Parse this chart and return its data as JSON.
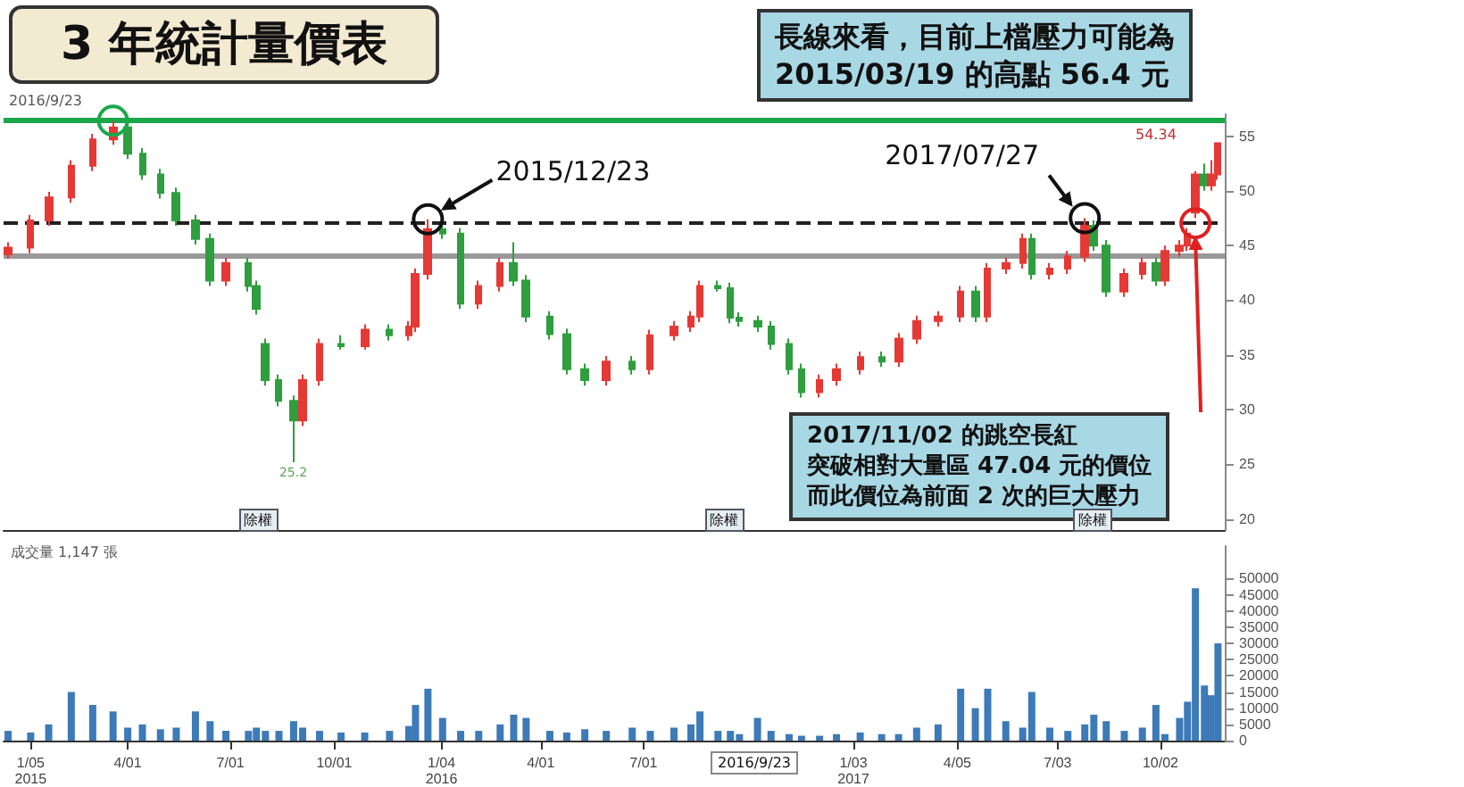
{
  "chart_data": [
    {
      "type": "candlestick",
      "title": "3 年統計量價表",
      "x": [
        "2014-12-16",
        "2015-01-05",
        "2015-01-21",
        "2015-02-10",
        "2015-03-01",
        "2015-03-19",
        "2015-04-01",
        "2015-04-14",
        "2015-04-30",
        "2015-05-14",
        "2015-05-31",
        "2015-06-13",
        "2015-06-27",
        "2015-07-17",
        "2015-07-24",
        "2015-08-01",
        "2015-08-13",
        "2015-08-26",
        "2015-09-03",
        "2015-09-18",
        "2015-10-07",
        "2015-10-28",
        "2015-11-19",
        "2015-12-06",
        "2015-12-12",
        "2015-12-23",
        "2016-01-05",
        "2016-01-21",
        "2016-02-06",
        "2016-02-25",
        "2016-03-08",
        "2016-03-19",
        "2016-04-09",
        "2016-04-24",
        "2016-05-10",
        "2016-05-29",
        "2016-06-21",
        "2016-07-07",
        "2016-07-28",
        "2016-08-12",
        "2016-08-20",
        "2016-09-05",
        "2016-09-16",
        "2016-09-24",
        "2016-10-10",
        "2016-10-22",
        "2016-11-07",
        "2016-11-18",
        "2016-12-04",
        "2016-12-19",
        "2017-01-09",
        "2017-01-28",
        "2017-02-12",
        "2017-02-28",
        "2017-03-19",
        "2017-04-08",
        "2017-04-21",
        "2017-05-02",
        "2017-05-18",
        "2017-06-02",
        "2017-06-10",
        "2017-06-26",
        "2017-07-12",
        "2017-07-27",
        "2017-08-04",
        "2017-08-15",
        "2017-08-31",
        "2017-09-16",
        "2017-09-28",
        "2017-10-06",
        "2017-10-19",
        "2017-10-26",
        "2017-11-02",
        "2017-11-10",
        "2017-11-16",
        "2017-11-22"
      ],
      "ohlc": [
        [
          44.2,
          45.3,
          43.8,
          44.8
        ],
        [
          44.8,
          47.8,
          44.3,
          47.3
        ],
        [
          47.3,
          49.9,
          46.8,
          49.4
        ],
        [
          49.4,
          52.8,
          48.9,
          52.3
        ],
        [
          52.3,
          55.2,
          51.8,
          54.7
        ],
        [
          54.7,
          56.4,
          54.2,
          55.8
        ],
        [
          55.8,
          56.1,
          52.9,
          53.4
        ],
        [
          53.4,
          53.9,
          51.0,
          51.5
        ],
        [
          51.5,
          52.0,
          49.3,
          49.8
        ],
        [
          49.8,
          50.3,
          46.8,
          47.3
        ],
        [
          47.3,
          47.8,
          45.1,
          45.6
        ],
        [
          45.6,
          46.1,
          41.3,
          41.8
        ],
        [
          41.8,
          43.9,
          41.3,
          43.4
        ],
        [
          43.4,
          43.9,
          40.8,
          41.3
        ],
        [
          41.3,
          41.8,
          38.7,
          39.2
        ],
        [
          36.0,
          36.5,
          32.2,
          32.7
        ],
        [
          32.7,
          33.2,
          30.3,
          30.8
        ],
        [
          30.8,
          31.3,
          25.2,
          29.0
        ],
        [
          29.0,
          33.2,
          28.5,
          32.7
        ],
        [
          32.7,
          36.5,
          32.2,
          36.0
        ],
        [
          36.0,
          36.8,
          35.5,
          35.8
        ],
        [
          35.8,
          37.8,
          35.5,
          37.3
        ],
        [
          37.3,
          37.8,
          36.3,
          36.8
        ],
        [
          36.8,
          38.1,
          36.3,
          37.6
        ],
        [
          37.6,
          42.9,
          37.1,
          42.4
        ],
        [
          42.4,
          47.4,
          41.9,
          46.5
        ],
        [
          46.5,
          47.0,
          45.6,
          46.1
        ],
        [
          46.1,
          46.6,
          39.2,
          39.7
        ],
        [
          39.7,
          41.8,
          39.2,
          41.3
        ],
        [
          41.3,
          43.9,
          40.8,
          43.4
        ],
        [
          43.4,
          45.3,
          41.3,
          41.8
        ],
        [
          41.8,
          42.3,
          38.0,
          38.5
        ],
        [
          38.5,
          39.0,
          36.4,
          36.9
        ],
        [
          36.9,
          37.4,
          33.2,
          33.7
        ],
        [
          33.7,
          34.2,
          32.2,
          32.7
        ],
        [
          32.7,
          34.9,
          32.2,
          34.4
        ],
        [
          34.4,
          34.9,
          33.2,
          33.7
        ],
        [
          33.7,
          37.3,
          33.2,
          36.8
        ],
        [
          36.8,
          38.1,
          36.3,
          37.6
        ],
        [
          37.6,
          39.0,
          37.1,
          38.5
        ],
        [
          38.5,
          41.8,
          38.0,
          41.3
        ],
        [
          41.3,
          41.8,
          40.8,
          41.1
        ],
        [
          41.1,
          41.6,
          37.9,
          38.4
        ],
        [
          38.4,
          38.9,
          37.6,
          38.1
        ],
        [
          38.1,
          38.6,
          37.1,
          37.6
        ],
        [
          37.6,
          38.1,
          35.5,
          36.0
        ],
        [
          36.0,
          36.5,
          33.2,
          33.7
        ],
        [
          33.7,
          34.2,
          31.1,
          31.6
        ],
        [
          31.6,
          33.2,
          31.1,
          32.7
        ],
        [
          32.7,
          34.2,
          32.2,
          33.7
        ],
        [
          33.7,
          35.3,
          33.2,
          34.8
        ],
        [
          34.8,
          35.3,
          33.9,
          34.4
        ],
        [
          34.4,
          37.0,
          33.9,
          36.5
        ],
        [
          36.5,
          38.6,
          36.0,
          38.1
        ],
        [
          38.1,
          39.0,
          37.6,
          38.5
        ],
        [
          38.5,
          41.3,
          38.0,
          40.8
        ],
        [
          40.8,
          41.3,
          38.0,
          38.5
        ],
        [
          38.5,
          43.4,
          38.0,
          42.9
        ],
        [
          42.9,
          43.9,
          42.4,
          43.4
        ],
        [
          43.4,
          46.1,
          42.9,
          45.6
        ],
        [
          45.6,
          46.1,
          41.9,
          42.4
        ],
        [
          42.4,
          43.4,
          41.9,
          42.9
        ],
        [
          42.9,
          44.5,
          42.4,
          44.0
        ],
        [
          44.0,
          47.5,
          43.5,
          46.8
        ],
        [
          46.8,
          47.3,
          44.5,
          45.0
        ],
        [
          45.0,
          45.5,
          40.3,
          40.8
        ],
        [
          40.8,
          42.9,
          40.3,
          42.4
        ],
        [
          42.4,
          43.9,
          41.9,
          43.4
        ],
        [
          43.4,
          43.9,
          41.3,
          41.8
        ],
        [
          41.8,
          45.0,
          41.3,
          44.5
        ],
        [
          44.5,
          45.5,
          44.0,
          45.0
        ],
        [
          45.0,
          46.6,
          44.5,
          46.1
        ],
        [
          48.0,
          51.8,
          47.5,
          51.5
        ],
        [
          51.5,
          52.5,
          50.0,
          50.5
        ],
        [
          50.5,
          52.8,
          50.0,
          51.5
        ],
        [
          51.5,
          54.34,
          51.0,
          54.34
        ]
      ],
      "xlim": [
        "2014-12-12",
        "2017-11-28"
      ],
      "ylim": [
        19,
        57
      ],
      "yticks": [
        20,
        25,
        30,
        35,
        40,
        45,
        50,
        55
      ],
      "tick_labels": "y",
      "ref_lines": [
        {
          "axis": "y",
          "value": 56.4,
          "color": "#1aa84b",
          "line_style": "solid"
        },
        {
          "axis": "y",
          "value": 47.04,
          "color": "#222222",
          "line_style": "dashed"
        },
        {
          "axis": "y",
          "value": 44.0,
          "color": "#999999",
          "line_style": "solid"
        }
      ],
      "annotations": [
        "長線來看，目前上檔壓力可能為",
        "2015/03/19 的高點 56.4 元",
        {
          "text": "2015/12/23",
          "x": "2015-12-23",
          "y": 47.4
        },
        {
          "text": "2017/07/27",
          "x": "2017-07-27",
          "y": 47.5
        },
        "2017/11/02 的跳空長紅",
        "突破相對大量區 47.04 元的價位",
        "而此價位為前面 2 次的巨大壓力",
        {
          "text": "25.2",
          "x": "2015-08-26",
          "y": 25.2
        },
        "54.34",
        {
          "text": "除權",
          "x": "2015-07-24",
          "y": 20
        },
        {
          "text": "除權",
          "x": "2016-09-09",
          "y": 20
        },
        {
          "text": "除權",
          "x": "2017-08-01",
          "y": 20
        },
        "2016/9/23"
      ]
    },
    {
      "type": "bar",
      "color": "#3d7ab8",
      "x": [
        "2014-12-16",
        "2015-01-05",
        "2015-01-21",
        "2015-02-10",
        "2015-03-01",
        "2015-03-19",
        "2015-04-01",
        "2015-04-14",
        "2015-04-30",
        "2015-05-14",
        "2015-05-31",
        "2015-06-13",
        "2015-06-27",
        "2015-07-17",
        "2015-07-24",
        "2015-08-01",
        "2015-08-13",
        "2015-08-26",
        "2015-09-03",
        "2015-09-18",
        "2015-10-07",
        "2015-10-28",
        "2015-11-19",
        "2015-12-06",
        "2015-12-12",
        "2015-12-23",
        "2016-01-05",
        "2016-01-21",
        "2016-02-06",
        "2016-02-25",
        "2016-03-08",
        "2016-03-19",
        "2016-04-09",
        "2016-04-24",
        "2016-05-10",
        "2016-05-29",
        "2016-06-21",
        "2016-07-07",
        "2016-07-28",
        "2016-08-12",
        "2016-08-20",
        "2016-09-05",
        "2016-09-16",
        "2016-09-24",
        "2016-10-10",
        "2016-10-22",
        "2016-11-07",
        "2016-11-18",
        "2016-12-04",
        "2016-12-19",
        "2017-01-09",
        "2017-01-28",
        "2017-02-12",
        "2017-02-28",
        "2017-03-19",
        "2017-04-08",
        "2017-04-21",
        "2017-05-02",
        "2017-05-18",
        "2017-06-02",
        "2017-06-10",
        "2017-06-26",
        "2017-07-12",
        "2017-07-27",
        "2017-08-04",
        "2017-08-15",
        "2017-08-31",
        "2017-09-16",
        "2017-09-28",
        "2017-10-06",
        "2017-10-19",
        "2017-10-26",
        "2017-11-02",
        "2017-11-10",
        "2017-11-16",
        "2017-11-22"
      ],
      "values": [
        3000,
        2500,
        5000,
        15000,
        11000,
        9000,
        4000,
        5000,
        3500,
        4000,
        9000,
        6000,
        3000,
        3000,
        4000,
        3000,
        3000,
        6000,
        4000,
        3000,
        2500,
        2500,
        3000,
        4500,
        11000,
        16000,
        7000,
        3000,
        3000,
        5000,
        8000,
        7000,
        3000,
        2500,
        3500,
        3000,
        4000,
        3000,
        4000,
        5000,
        9000,
        3000,
        3000,
        2000,
        7000,
        3000,
        2000,
        1500,
        1500,
        2000,
        2500,
        2000,
        2000,
        4000,
        5000,
        16000,
        10000,
        16000,
        6000,
        4000,
        15000,
        4000,
        3000,
        5000,
        8000,
        6000,
        3000,
        4000,
        11000,
        2000,
        7000,
        12000,
        47000,
        17000,
        14000,
        30000
      ],
      "xlim": [
        "2014-12-12",
        "2017-11-28"
      ],
      "xticks": [
        {
          "value": "2015-01-05",
          "label": "1/05\n2015"
        },
        {
          "value": "2015-04-01",
          "label": "4/01"
        },
        {
          "value": "2015-07-01",
          "label": "7/01"
        },
        {
          "value": "2015-10-01",
          "label": "10/01"
        },
        {
          "value": "2016-01-04",
          "label": "1/04\n2016"
        },
        {
          "value": "2016-04-01",
          "label": "4/01"
        },
        {
          "value": "2016-07-01",
          "label": "7/01"
        },
        {
          "value": "2017-01-03",
          "label": "1/03\n2017"
        },
        {
          "value": "2017-04-05",
          "label": "4/05"
        },
        {
          "value": "2017-07-03",
          "label": "7/03"
        },
        {
          "value": "2017-10-02",
          "label": "10/02"
        }
      ],
      "ylim": [
        0,
        60000
      ],
      "yticks": [
        0,
        5000,
        10000,
        15000,
        20000,
        25000,
        30000,
        35000,
        40000,
        45000,
        50000
      ],
      "annotations": [
        "成交量 1,147 張",
        "2016/9/23"
      ]
    }
  ]
}
